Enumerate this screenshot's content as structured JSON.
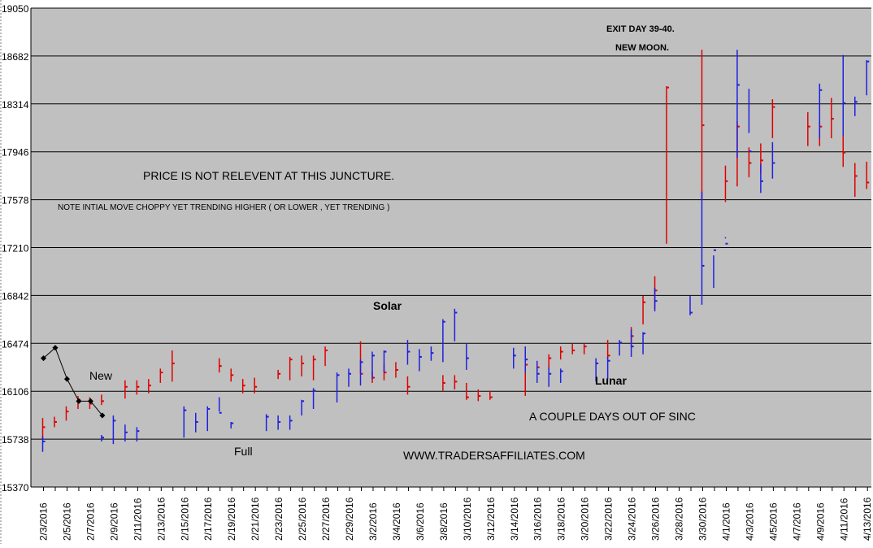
{
  "chart_data": {
    "type": "ohlc",
    "y_ticks": [
      "15370",
      "15738",
      "16106",
      "16474",
      "16842",
      "17210",
      "17578",
      "17946",
      "18314",
      "18682",
      "19050"
    ],
    "ylim": [
      15370,
      19050
    ],
    "x_ticks": [
      "2/3/2016",
      "2/5/2016",
      "2/7/2016",
      "2/9/2016",
      "2/11/2016",
      "2/13/2016",
      "2/15/2016",
      "2/17/2016",
      "2/19/2016",
      "2/21/2016",
      "2/23/2016",
      "2/25/2016",
      "2/27/2016",
      "2/29/2016",
      "3/2/2016",
      "3/4/2016",
      "3/6/2016",
      "3/8/2016",
      "3/10/2016",
      "3/12/2016",
      "3/14/2016",
      "3/16/2016",
      "3/18/2016",
      "3/20/2016",
      "3/22/2016",
      "3/24/2016",
      "3/26/2016",
      "3/28/2016",
      "3/30/2016",
      "4/1/2016",
      "4/3/2016",
      "4/5/2016",
      "4/7/2016",
      "4/9/2016",
      "4/11/2016",
      "4/13/2016"
    ],
    "x_start": 0,
    "x_end": 71.4,
    "grid": "horizontal",
    "colors": {
      "plot_bg": "#c0c0c0",
      "red": "#e00000",
      "blue": "#2020e0",
      "grid": "#000000",
      "line": "#000000"
    },
    "series": [
      {
        "color": "red",
        "bars": [
          [
            0,
            15740,
            15900,
            15830
          ],
          [
            1,
            15830,
            15910,
            15870
          ],
          [
            2,
            15880,
            15990,
            15950
          ],
          [
            3,
            15970,
            16070,
            16040
          ],
          [
            4,
            15970,
            16060,
            16010
          ],
          [
            5,
            16000,
            16080,
            16030
          ],
          [
            7,
            16050,
            16190,
            16140
          ],
          [
            8,
            16080,
            16190,
            16140
          ],
          [
            9,
            16090,
            16200,
            16150
          ],
          [
            10,
            16170,
            16280,
            16250
          ],
          [
            11,
            16180,
            16420,
            16320
          ],
          [
            15,
            16250,
            16360,
            16300
          ],
          [
            16,
            16180,
            16280,
            16230
          ],
          [
            17,
            16090,
            16200,
            16150
          ],
          [
            18,
            16090,
            16210,
            16140
          ],
          [
            20,
            16200,
            16270,
            16240
          ],
          [
            21,
            16190,
            16370,
            16350
          ],
          [
            22,
            16220,
            16380,
            16320
          ],
          [
            23,
            16190,
            16380,
            16350
          ],
          [
            24,
            16300,
            16450,
            16420
          ],
          [
            27,
            16240,
            16490,
            16240
          ],
          [
            28,
            16170,
            16260,
            16210
          ],
          [
            29,
            16190,
            16320,
            16250
          ],
          [
            30,
            16210,
            16330,
            16270
          ],
          [
            31,
            16080,
            16220,
            16140
          ],
          [
            34,
            16110,
            16230,
            16170
          ],
          [
            35,
            16120,
            16230,
            16180
          ],
          [
            36,
            16040,
            16170,
            16060
          ],
          [
            37,
            16030,
            16120,
            16070
          ],
          [
            38,
            16040,
            16110,
            16060
          ],
          [
            41,
            16070,
            16320,
            16310
          ],
          [
            42,
            16250,
            16330,
            16290
          ],
          [
            43,
            16270,
            16390,
            16360
          ],
          [
            44,
            16350,
            16450,
            16410
          ],
          [
            45,
            16390,
            16470,
            16420
          ],
          [
            46,
            16390,
            16470,
            16450
          ],
          [
            48,
            16360,
            16500,
            16380
          ],
          [
            50,
            16450,
            16600,
            16530
          ],
          [
            51,
            16620,
            16840,
            16790
          ],
          [
            52,
            16740,
            16990,
            16880
          ],
          [
            53,
            17240,
            18450,
            18440
          ],
          [
            56,
            17580,
            18730,
            18150
          ],
          [
            58,
            17560,
            17840,
            17720
          ],
          [
            59,
            17680,
            18180,
            18140
          ],
          [
            60,
            17750,
            17980,
            17860
          ],
          [
            61,
            17780,
            18010,
            17880
          ],
          [
            62,
            18050,
            18350,
            18290
          ],
          [
            65,
            17990,
            18250,
            18140
          ],
          [
            66,
            17990,
            18180,
            18140
          ],
          [
            67,
            18050,
            18360,
            18200
          ],
          [
            68,
            17830,
            18180,
            17940
          ],
          [
            69,
            17600,
            17860,
            17760
          ],
          [
            70,
            17660,
            17870,
            17710
          ],
          [
            73,
            17770,
            18040,
            17840
          ]
        ]
      },
      {
        "color": "blue",
        "bars": [
          [
            0,
            15640,
            15760,
            15720
          ],
          [
            5,
            15720,
            15770,
            15750
          ],
          [
            6,
            15700,
            15920,
            15880
          ],
          [
            7,
            15720,
            15850,
            15790
          ],
          [
            8,
            15720,
            15830,
            15800
          ],
          [
            12,
            15750,
            15990,
            15960
          ],
          [
            13,
            15790,
            15940,
            15870
          ],
          [
            14,
            15800,
            15990,
            15970
          ],
          [
            15,
            15950,
            16060,
            15940
          ],
          [
            16,
            15820,
            15870,
            15860
          ],
          [
            19,
            15800,
            15930,
            15910
          ],
          [
            20,
            15810,
            15920,
            15870
          ],
          [
            21,
            15810,
            15920,
            15880
          ],
          [
            22,
            15920,
            16040,
            16030
          ],
          [
            23,
            15970,
            16130,
            16110
          ],
          [
            25,
            16020,
            16250,
            16230
          ],
          [
            26,
            16140,
            16280,
            16240
          ],
          [
            27,
            16150,
            16350,
            16330
          ],
          [
            28,
            16200,
            16410,
            16380
          ],
          [
            29,
            16250,
            16420,
            16410
          ],
          [
            31,
            16310,
            16500,
            16410
          ],
          [
            32,
            16260,
            16430,
            16370
          ],
          [
            33,
            16340,
            16450,
            16400
          ],
          [
            34,
            16330,
            16660,
            16640
          ],
          [
            35,
            16490,
            16740,
            16710
          ],
          [
            36,
            16270,
            16470,
            16360
          ],
          [
            40,
            16280,
            16440,
            16380
          ],
          [
            41,
            16250,
            16450,
            16350
          ],
          [
            42,
            16170,
            16340,
            16240
          ],
          [
            43,
            16140,
            16290,
            16240
          ],
          [
            44,
            16170,
            16280,
            16260
          ],
          [
            47,
            16180,
            16360,
            16320
          ],
          [
            48,
            16200,
            16370,
            16340
          ],
          [
            49,
            16380,
            16500,
            16480
          ],
          [
            50,
            16370,
            16580,
            16450
          ],
          [
            51,
            16390,
            16560,
            16550
          ],
          [
            52,
            16720,
            16900,
            16800
          ],
          [
            55,
            16690,
            16840,
            16710
          ],
          [
            56,
            16770,
            17640,
            17070
          ],
          [
            57,
            16900,
            17150,
            17190
          ],
          [
            58,
            17280,
            17290,
            17240
          ],
          [
            59,
            17900,
            18730,
            18460
          ],
          [
            60,
            18090,
            18430,
            17950
          ],
          [
            61,
            17630,
            17850,
            17720
          ],
          [
            62,
            17740,
            18020,
            17860
          ],
          [
            66,
            18050,
            18470,
            18420
          ],
          [
            68,
            18070,
            18690,
            18320
          ],
          [
            69,
            18220,
            18370,
            18330
          ],
          [
            70,
            18380,
            18650,
            18640
          ],
          [
            74,
            18610,
            18810,
            18820
          ],
          [
            75,
            18740,
            19050,
            19030
          ]
        ]
      }
    ],
    "new_line": [
      [
        0,
        16360
      ],
      [
        1,
        16440
      ],
      [
        2,
        16200
      ],
      [
        3,
        16030
      ],
      [
        4,
        16030
      ],
      [
        5,
        15920
      ]
    ],
    "annotations": {
      "exit_day": "EXIT DAY 39-40.",
      "new_moon": "NEW MOON.",
      "price_note": "PRICE IS NOT RELEVENT AT THIS JUNCTURE.",
      "trend_note": "NOTE INTIAL MOVE CHOPPY YET TRENDING HIGHER ( OR LOWER , YET TRENDING )",
      "solar": "Solar",
      "new": "New",
      "lunar": "Lunar",
      "full": "Full",
      "sinc": "A COUPLE DAYS OUT OF SINC",
      "website": "WWW.TRADERSAFFILIATES.COM"
    }
  }
}
